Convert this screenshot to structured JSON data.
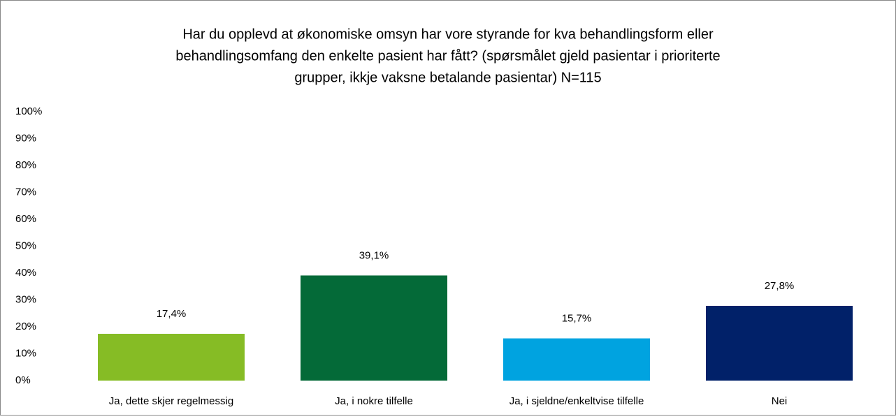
{
  "chart_data": {
    "type": "bar",
    "title": [
      "Har du opplevd at økonomiske omsyn har vore styrande for kva behandlingsform eller",
      "behandlingsomfang den enkelte pasient har fått? (spørsmålet gjeld pasientar i prioriterte",
      "grupper, ikkje vaksne betalande pasientar) N=115"
    ],
    "categories": [
      "Ja, dette skjer regelmessig",
      "Ja, i nokre tilfelle",
      "Ja, i sjeldne/enkeltvise tilfelle",
      "Nei"
    ],
    "values": [
      17.4,
      39.1,
      15.7,
      27.8
    ],
    "value_labels": [
      "17,4%",
      "39,1%",
      "15,7%",
      "27,8%"
    ],
    "colors": [
      "#86bc25",
      "#046a38",
      "#00a3e0",
      "#012169"
    ],
    "ylim": [
      0,
      100
    ],
    "yticks": [
      {
        "value": 0,
        "label": "0%"
      },
      {
        "value": 10,
        "label": "10%"
      },
      {
        "value": 20,
        "label": "20%"
      },
      {
        "value": 30,
        "label": "30%"
      },
      {
        "value": 40,
        "label": "40%"
      },
      {
        "value": 50,
        "label": "50%"
      },
      {
        "value": 60,
        "label": "60%"
      },
      {
        "value": 70,
        "label": "70%"
      },
      {
        "value": 80,
        "label": "80%"
      },
      {
        "value": 90,
        "label": "90%"
      },
      {
        "value": 100,
        "label": "100%"
      }
    ],
    "grid": false
  }
}
